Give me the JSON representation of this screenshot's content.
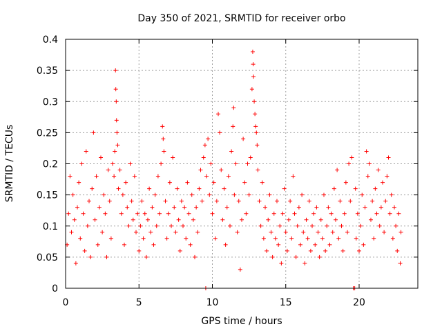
{
  "chart_data": {
    "type": "scatter",
    "title": "Day 350 of 2021, SRMTID for receiver orbo",
    "xlabel": "GPS time / hours",
    "ylabel": "SRMTID / TECUs",
    "xlim": [
      0,
      24
    ],
    "ylim": [
      0,
      0.4
    ],
    "x_ticks": [
      0,
      5,
      10,
      15,
      20
    ],
    "x_tick_labels": [
      "0",
      "5",
      "10",
      "15",
      "20"
    ],
    "y_ticks": [
      0,
      0.05,
      0.1,
      0.15,
      0.2,
      0.25,
      0.3,
      0.35,
      0.4
    ],
    "y_tick_labels": [
      "0",
      "0.05",
      "0.1",
      "0.15",
      "0.2",
      "0.25",
      "0.3",
      "0.35",
      "0.4"
    ],
    "grid": true,
    "marker": "+",
    "color": "#ff0000",
    "series": [
      {
        "name": "SRMTID",
        "points": [
          [
            0.1,
            0.07
          ],
          [
            0.2,
            0.12
          ],
          [
            0.3,
            0.18
          ],
          [
            0.4,
            0.09
          ],
          [
            0.5,
            0.15
          ],
          [
            0.6,
            0.11
          ],
          [
            0.7,
            0.04
          ],
          [
            0.8,
            0.13
          ],
          [
            0.9,
            0.17
          ],
          [
            1.0,
            0.08
          ],
          [
            1.1,
            0.2
          ],
          [
            1.2,
            0.12
          ],
          [
            1.3,
            0.06
          ],
          [
            1.4,
            0.22
          ],
          [
            1.5,
            0.1
          ],
          [
            1.6,
            0.14
          ],
          [
            1.7,
            0.05
          ],
          [
            1.8,
            0.16
          ],
          [
            1.9,
            0.25
          ],
          [
            2.0,
            0.11
          ],
          [
            2.1,
            0.18
          ],
          [
            2.2,
            0.07
          ],
          [
            2.3,
            0.13
          ],
          [
            2.4,
            0.21
          ],
          [
            2.5,
            0.09
          ],
          [
            2.6,
            0.15
          ],
          [
            2.7,
            0.12
          ],
          [
            2.8,
            0.05
          ],
          [
            2.9,
            0.19
          ],
          [
            3.0,
            0.14
          ],
          [
            3.1,
            0.08
          ],
          [
            3.2,
            0.2
          ],
          [
            3.3,
            0.18
          ],
          [
            3.35,
            0.22
          ],
          [
            3.4,
            0.35
          ],
          [
            3.42,
            0.32
          ],
          [
            3.45,
            0.3
          ],
          [
            3.47,
            0.27
          ],
          [
            3.5,
            0.25
          ],
          [
            3.55,
            0.23
          ],
          [
            3.6,
            0.16
          ],
          [
            3.7,
            0.19
          ],
          [
            3.8,
            0.12
          ],
          [
            3.9,
            0.15
          ],
          [
            4.0,
            0.07
          ],
          [
            4.1,
            0.17
          ],
          [
            4.2,
            0.13
          ],
          [
            4.3,
            0.1
          ],
          [
            4.4,
            0.2
          ],
          [
            4.5,
            0.14
          ],
          [
            4.6,
            0.11
          ],
          [
            4.7,
            0.18
          ],
          [
            4.8,
            0.09
          ],
          [
            4.9,
            0.12
          ],
          [
            5.0,
            0.06
          ],
          [
            5.1,
            0.1
          ],
          [
            5.2,
            0.14
          ],
          [
            5.3,
            0.08
          ],
          [
            5.4,
            0.12
          ],
          [
            5.5,
            0.05
          ],
          [
            5.6,
            0.11
          ],
          [
            5.7,
            0.16
          ],
          [
            5.8,
            0.09
          ],
          [
            5.9,
            0.13
          ],
          [
            6.0,
            0.07
          ],
          [
            6.1,
            0.15
          ],
          [
            6.2,
            0.1
          ],
          [
            6.3,
            0.18
          ],
          [
            6.4,
            0.12
          ],
          [
            6.5,
            0.2
          ],
          [
            6.6,
            0.26
          ],
          [
            6.65,
            0.24
          ],
          [
            6.7,
            0.22
          ],
          [
            6.8,
            0.14
          ],
          [
            6.9,
            0.08
          ],
          [
            7.0,
            0.12
          ],
          [
            7.1,
            0.17
          ],
          [
            7.2,
            0.1
          ],
          [
            7.3,
            0.21
          ],
          [
            7.4,
            0.13
          ],
          [
            7.5,
            0.09
          ],
          [
            7.6,
            0.16
          ],
          [
            7.7,
            0.11
          ],
          [
            7.8,
            0.06
          ],
          [
            7.9,
            0.14
          ],
          [
            8.0,
            0.1
          ],
          [
            8.1,
            0.13
          ],
          [
            8.2,
            0.08
          ],
          [
            8.3,
            0.17
          ],
          [
            8.4,
            0.12
          ],
          [
            8.5,
            0.07
          ],
          [
            8.6,
            0.15
          ],
          [
            8.7,
            0.11
          ],
          [
            8.8,
            0.05
          ],
          [
            8.9,
            0.13
          ],
          [
            9.0,
            0.09
          ],
          [
            9.1,
            0.16
          ],
          [
            9.2,
            0.19
          ],
          [
            9.3,
            0.14
          ],
          [
            9.4,
            0.21
          ],
          [
            9.5,
            0.23
          ],
          [
            9.55,
            0.0
          ],
          [
            9.6,
            0.18
          ],
          [
            9.7,
            0.24
          ],
          [
            9.8,
            0.15
          ],
          [
            9.9,
            0.2
          ],
          [
            10.0,
            0.12
          ],
          [
            10.1,
            0.17
          ],
          [
            10.2,
            0.08
          ],
          [
            10.3,
            0.14
          ],
          [
            10.4,
            0.28
          ],
          [
            10.5,
            0.25
          ],
          [
            10.6,
            0.19
          ],
          [
            10.7,
            0.11
          ],
          [
            10.8,
            0.16
          ],
          [
            10.9,
            0.07
          ],
          [
            11.0,
            0.13
          ],
          [
            11.1,
            0.18
          ],
          [
            11.2,
            0.1
          ],
          [
            11.3,
            0.22
          ],
          [
            11.4,
            0.26
          ],
          [
            11.45,
            0.29
          ],
          [
            11.5,
            0.15
          ],
          [
            11.6,
            0.2
          ],
          [
            11.7,
            0.09
          ],
          [
            11.8,
            0.14
          ],
          [
            11.9,
            0.03
          ],
          [
            12.0,
            0.11
          ],
          [
            12.1,
            0.24
          ],
          [
            12.2,
            0.17
          ],
          [
            12.3,
            0.12
          ],
          [
            12.4,
            0.2
          ],
          [
            12.5,
            0.15
          ],
          [
            12.6,
            0.21
          ],
          [
            12.7,
            0.32
          ],
          [
            12.75,
            0.38
          ],
          [
            12.78,
            0.36
          ],
          [
            12.8,
            0.34
          ],
          [
            12.85,
            0.3
          ],
          [
            12.9,
            0.28
          ],
          [
            12.95,
            0.26
          ],
          [
            13.0,
            0.25
          ],
          [
            13.05,
            0.23
          ],
          [
            13.1,
            0.19
          ],
          [
            13.2,
            0.14
          ],
          [
            13.3,
            0.1
          ],
          [
            13.4,
            0.17
          ],
          [
            13.5,
            0.08
          ],
          [
            13.6,
            0.13
          ],
          [
            13.7,
            0.06
          ],
          [
            13.8,
            0.11
          ],
          [
            13.9,
            0.15
          ],
          [
            14.0,
            0.09
          ],
          [
            14.1,
            0.05
          ],
          [
            14.2,
            0.12
          ],
          [
            14.3,
            0.08
          ],
          [
            14.4,
            0.14
          ],
          [
            14.5,
            0.07
          ],
          [
            14.6,
            0.1
          ],
          [
            14.7,
            0.04
          ],
          [
            14.8,
            0.12
          ],
          [
            14.9,
            0.16
          ],
          [
            15.0,
            0.09
          ],
          [
            15.1,
            0.06
          ],
          [
            15.2,
            0.11
          ],
          [
            15.3,
            0.14
          ],
          [
            15.4,
            0.08
          ],
          [
            15.5,
            0.18
          ],
          [
            15.6,
            0.12
          ],
          [
            15.7,
            0.05
          ],
          [
            15.8,
            0.1
          ],
          [
            15.9,
            0.13
          ],
          [
            16.0,
            0.07
          ],
          [
            16.1,
            0.15
          ],
          [
            16.2,
            0.09
          ],
          [
            16.3,
            0.04
          ],
          [
            16.4,
            0.11
          ],
          [
            16.5,
            0.08
          ],
          [
            16.6,
            0.14
          ],
          [
            16.7,
            0.06
          ],
          [
            16.8,
            0.1
          ],
          [
            16.9,
            0.12
          ],
          [
            17.0,
            0.07
          ],
          [
            17.1,
            0.13
          ],
          [
            17.2,
            0.09
          ],
          [
            17.3,
            0.05
          ],
          [
            17.4,
            0.11
          ],
          [
            17.5,
            0.08
          ],
          [
            17.6,
            0.15
          ],
          [
            17.7,
            0.06
          ],
          [
            17.8,
            0.1
          ],
          [
            17.9,
            0.13
          ],
          [
            18.0,
            0.07
          ],
          [
            18.1,
            0.12
          ],
          [
            18.2,
            0.09
          ],
          [
            18.3,
            0.16
          ],
          [
            18.4,
            0.11
          ],
          [
            18.5,
            0.19
          ],
          [
            18.6,
            0.08
          ],
          [
            18.7,
            0.14
          ],
          [
            18.8,
            0.1
          ],
          [
            18.9,
            0.06
          ],
          [
            19.0,
            0.12
          ],
          [
            19.1,
            0.17
          ],
          [
            19.2,
            0.09
          ],
          [
            19.3,
            0.2
          ],
          [
            19.4,
            0.14
          ],
          [
            19.5,
            0.21
          ],
          [
            19.6,
            0.0
          ],
          [
            19.7,
            0.0
          ],
          [
            19.75,
            0.16
          ],
          [
            19.8,
            0.08
          ],
          [
            19.9,
            0.12
          ],
          [
            20.0,
            0.06
          ],
          [
            20.1,
            0.1
          ],
          [
            20.2,
            0.15
          ],
          [
            20.3,
            0.07
          ],
          [
            20.4,
            0.13
          ],
          [
            20.5,
            0.22
          ],
          [
            20.6,
            0.18
          ],
          [
            20.7,
            0.2
          ],
          [
            20.8,
            0.11
          ],
          [
            20.9,
            0.14
          ],
          [
            21.0,
            0.08
          ],
          [
            21.1,
            0.16
          ],
          [
            21.2,
            0.12
          ],
          [
            21.3,
            0.19
          ],
          [
            21.4,
            0.1
          ],
          [
            21.5,
            0.13
          ],
          [
            21.6,
            0.17
          ],
          [
            21.7,
            0.09
          ],
          [
            21.8,
            0.14
          ],
          [
            21.9,
            0.18
          ],
          [
            22.0,
            0.21
          ],
          [
            22.1,
            0.12
          ],
          [
            22.2,
            0.15
          ],
          [
            22.3,
            0.08
          ],
          [
            22.4,
            0.13
          ],
          [
            22.5,
            0.1
          ],
          [
            22.6,
            0.06
          ],
          [
            22.7,
            0.12
          ],
          [
            22.8,
            0.04
          ],
          [
            22.85,
            0.09
          ]
        ]
      }
    ]
  }
}
